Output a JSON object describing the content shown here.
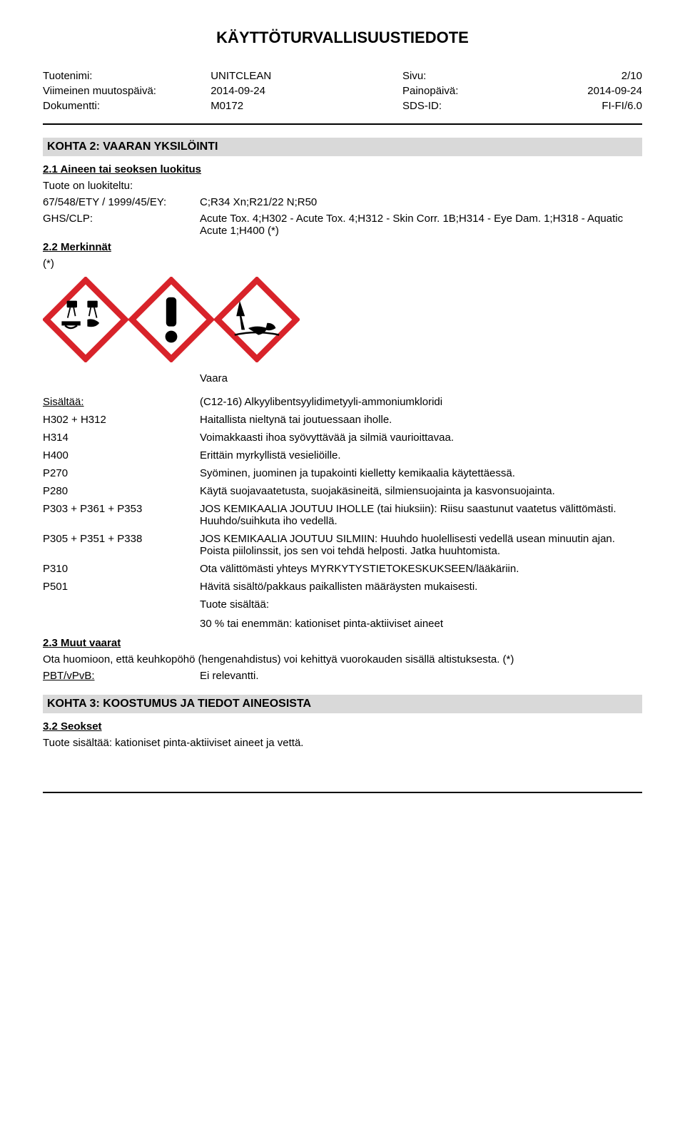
{
  "doc_title": "KÄYTTÖTURVALLISUUSTIEDOTE",
  "header": {
    "rows": [
      {
        "l1": "Tuotenimi:",
        "v1": "UNITCLEAN",
        "l2": "Sivu:",
        "v2": "2/10"
      },
      {
        "l1": "Viimeinen muutospäivä:",
        "v1": "2014-09-24",
        "l2": "Painopäivä:",
        "v2": "2014-09-24"
      },
      {
        "l1": "Dokumentti:",
        "v1": "M0172",
        "l2": "SDS-ID:",
        "v2": "FI-FI/6.0"
      }
    ]
  },
  "section2": {
    "title": "KOHTA 2: VAARAN YKSILÖINTI",
    "sub21": "2.1 Aineen tai seoksen luokitus",
    "classified_text": "Tuote on luokiteltu:",
    "rows": [
      {
        "k": "67/548/ETY / 1999/45/EY:",
        "v": "C;R34 Xn;R21/22 N;R50"
      },
      {
        "k": "GHS/CLP:",
        "v": "Acute Tox. 4;H302 - Acute Tox. 4;H312 - Skin Corr. 1B;H314 - Eye Dam. 1;H318 - Aquatic Acute 1;H400 (*)"
      }
    ],
    "sub22": "2.2 Merkinnät",
    "asterisk": "(*)",
    "signal_word": "Vaara",
    "statements": [
      {
        "code": "Sisältää:",
        "code_underline": true,
        "txt": "(C12-16) Alkyylibentsyylidimetyyli-ammoniumkloridi"
      },
      {
        "code": "H302 + H312",
        "txt": "Haitallista nieltynä tai joutuessaan iholle."
      },
      {
        "code": "H314",
        "txt": "Voimakkaasti ihoa syövyttävää ja silmiä vaurioittavaa."
      },
      {
        "code": "H400",
        "txt": "Erittäin myrkyllistä vesieliöille."
      },
      {
        "code": "P270",
        "txt": "Syöminen, juominen ja tupakointi kielletty kemikaalia käytettäessä."
      },
      {
        "code": "P280",
        "txt": "Käytä suojavaatetusta, suojakäsineitä, silmiensuojainta ja kasvonsuojainta."
      },
      {
        "code": "P303 + P361 + P353",
        "txt": "JOS KEMIKAALIA JOUTUU IHOLLE (tai hiuksiin): Riisu saastunut vaatetus välittömästi. Huuhdo/suihkuta iho vedellä."
      },
      {
        "code": "P305 + P351 + P338",
        "txt": "JOS KEMIKAALIA JOUTUU SILMIIN: Huuhdo huolellisesti vedellä usean minuutin ajan. Poista piilolinssit, jos sen voi tehdä helposti. Jatka huuhtomista."
      },
      {
        "code": "P310",
        "txt": "Ota välittömästi yhteys MYRKYTYSTIETOKESKUKSEEN/lääkäriin."
      },
      {
        "code": "P501",
        "txt": "Hävitä sisältö/pakkaus paikallisten määräysten mukaisesti."
      },
      {
        "code": "",
        "txt": "Tuote sisältää:"
      }
    ],
    "composition_line": "30 % tai enemmän: kationiset pinta-aktiiviset aineet",
    "sub23": "2.3 Muut vaarat",
    "other_hazards": "Ota huomioon, että keuhkopöhö (hengenahdistus) voi kehittyä vuorokauden sisällä altistuksesta. (*)",
    "pbt_label": "PBT/vPvB:",
    "pbt_value": "Ei relevantti."
  },
  "section3": {
    "title": "KOHTA 3: KOOSTUMUS JA TIEDOT AINEOSISTA",
    "sub32": "3.2 Seokset",
    "text": "Tuote sisältää: kationiset pinta-aktiiviset aineet ja vettä."
  },
  "colors": {
    "section_bg": "#d9d9d9",
    "ghs_border": "#d8232a",
    "ghs_fill": "#ffffff",
    "icon_fill": "#000000"
  }
}
